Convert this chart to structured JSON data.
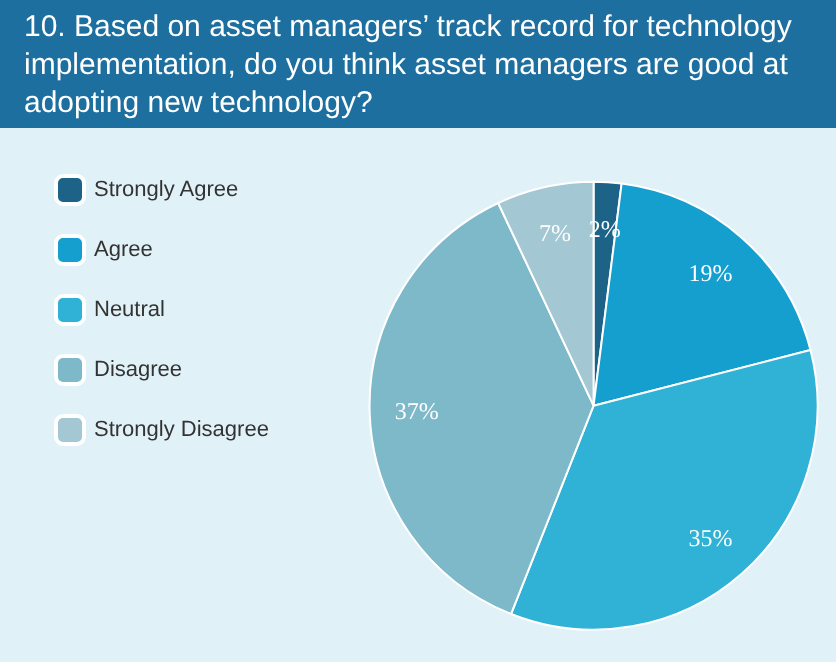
{
  "chart_data": {
    "type": "pie",
    "title": "10. Based on asset managers’ track record for technology implementation, do you think asset managers are good at adopting new technology?",
    "categories": [
      "Strongly Agree",
      "Agree",
      "Neutral",
      "Disagree",
      "Strongly Disagree"
    ],
    "values": [
      2,
      19,
      35,
      37,
      7
    ],
    "colors": [
      "#1d6388",
      "#159fcf",
      "#2fb2d6",
      "#7db9c9",
      "#a3c8d3"
    ],
    "value_labels": [
      "2%",
      "19%",
      "35%",
      "37%",
      "7%"
    ],
    "legend": "left"
  }
}
